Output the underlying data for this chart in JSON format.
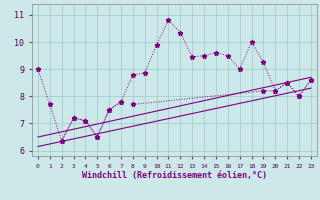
{
  "xlabel": "Windchill (Refroidissement éolien,°C)",
  "xlim": [
    -0.5,
    23.5
  ],
  "ylim": [
    5.8,
    11.4
  ],
  "xticks": [
    0,
    1,
    2,
    3,
    4,
    5,
    6,
    7,
    8,
    9,
    10,
    11,
    12,
    13,
    14,
    15,
    16,
    17,
    18,
    19,
    20,
    21,
    22,
    23
  ],
  "yticks": [
    6,
    7,
    8,
    9,
    10,
    11
  ],
  "bg_color": "#cce8e8",
  "line_color": "#800080",
  "grid_color": "#99cccc",
  "series_main": {
    "x": [
      0,
      1,
      2,
      3,
      4,
      5,
      6,
      7,
      8,
      9,
      10,
      11,
      12,
      13,
      14,
      15,
      16,
      17,
      18,
      19,
      20,
      21,
      22,
      23
    ],
    "y": [
      9.0,
      7.7,
      6.35,
      7.2,
      7.1,
      6.5,
      7.5,
      7.8,
      8.8,
      8.85,
      9.9,
      10.8,
      10.35,
      9.45,
      9.5,
      9.6,
      9.5,
      9.0,
      10.0,
      9.25,
      8.2,
      8.5,
      8.0,
      8.6
    ]
  },
  "series_lower_zigzag": {
    "x": [
      2,
      3,
      4,
      5,
      6,
      7,
      8,
      19,
      20,
      21,
      22,
      23
    ],
    "y": [
      6.35,
      7.2,
      7.1,
      6.5,
      7.5,
      7.8,
      7.7,
      8.2,
      8.2,
      8.5,
      8.0,
      8.6
    ]
  },
  "regression1": {
    "x": [
      0,
      23
    ],
    "y": [
      6.15,
      8.3
    ]
  },
  "regression2": {
    "x": [
      0,
      23
    ],
    "y": [
      6.5,
      8.7
    ]
  }
}
